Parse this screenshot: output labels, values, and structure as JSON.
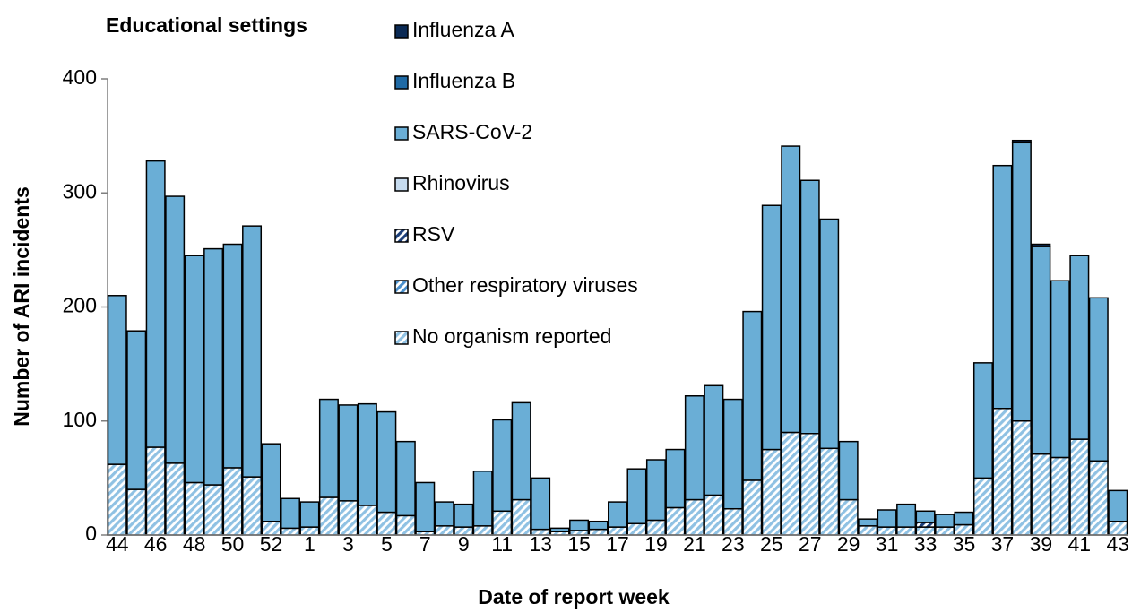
{
  "chart_data": {
    "type": "stacked_bar",
    "title": "Educational settings",
    "x_label": "Date of report week",
    "y_label": "Number of ARI incidents",
    "categories": [
      "44",
      null,
      "46",
      null,
      "48",
      null,
      "50",
      null,
      "52",
      null,
      "1",
      null,
      "3",
      null,
      "5",
      null,
      "7",
      null,
      "9",
      null,
      "11",
      null,
      "13",
      null,
      "15",
      null,
      "17",
      null,
      "19",
      null,
      "21",
      null,
      "23",
      null,
      "25",
      null,
      "27",
      null,
      "29",
      null,
      "31",
      null,
      "33",
      null,
      "35",
      null,
      "37",
      null,
      "39",
      null,
      "41",
      null,
      "43"
    ],
    "ylim": [
      0,
      400
    ],
    "yticks": [
      0,
      100,
      200,
      300,
      400
    ],
    "series": [
      {
        "name": "Influenza A",
        "color": "#0b2a55",
        "hatch": false,
        "values": [
          0,
          0,
          0,
          0,
          0,
          0,
          0,
          0,
          0,
          0,
          0,
          0,
          0,
          0,
          0,
          0,
          0,
          0,
          0,
          0,
          0,
          0,
          0,
          0,
          0,
          0,
          0,
          0,
          0,
          0,
          0,
          0,
          0,
          0,
          0,
          0,
          0,
          0,
          0,
          0,
          0,
          0,
          0,
          0,
          0,
          0,
          0,
          2,
          2,
          0,
          0,
          0,
          0
        ]
      },
      {
        "name": "Influenza B",
        "color": "#1f6aa5",
        "hatch": false,
        "values": [
          0,
          0,
          0,
          0,
          0,
          0,
          0,
          0,
          0,
          0,
          0,
          0,
          0,
          0,
          0,
          0,
          0,
          0,
          0,
          0,
          0,
          0,
          0,
          0,
          0,
          0,
          0,
          0,
          0,
          0,
          0,
          0,
          0,
          0,
          0,
          0,
          0,
          0,
          0,
          0,
          0,
          0,
          0,
          0,
          0,
          0,
          0,
          0,
          0,
          0,
          0,
          0,
          0
        ]
      },
      {
        "name": "SARS-CoV-2",
        "color": "#6aaed6",
        "hatch": false,
        "values": [
          148,
          139,
          251,
          234,
          199,
          207,
          196,
          220,
          68,
          26,
          22,
          86,
          84,
          89,
          88,
          65,
          43,
          21,
          20,
          48,
          80,
          85,
          45,
          3,
          9,
          7,
          22,
          48,
          53,
          51,
          91,
          96,
          96,
          148,
          214,
          251,
          222,
          201,
          51,
          6,
          15,
          20,
          10,
          11,
          11,
          101,
          213,
          244,
          182,
          155,
          161,
          143,
          27
        ]
      },
      {
        "name": "Rhinovirus",
        "color": "#c6dbef",
        "hatch": false,
        "values": [
          0,
          0,
          0,
          0,
          0,
          0,
          0,
          0,
          0,
          0,
          0,
          0,
          0,
          0,
          0,
          0,
          0,
          0,
          0,
          0,
          0,
          0,
          0,
          0,
          0,
          0,
          0,
          0,
          0,
          0,
          0,
          0,
          0,
          0,
          0,
          0,
          0,
          0,
          0,
          0,
          0,
          0,
          0,
          0,
          0,
          0,
          0,
          0,
          0,
          0,
          0,
          0,
          0
        ]
      },
      {
        "name": "RSV",
        "color": "#1c3f7a",
        "hatch": true,
        "values": [
          0,
          0,
          0,
          0,
          0,
          0,
          0,
          0,
          0,
          0,
          0,
          0,
          0,
          0,
          0,
          0,
          0,
          0,
          0,
          0,
          0,
          0,
          0,
          0,
          0,
          0,
          0,
          0,
          0,
          0,
          0,
          0,
          0,
          0,
          0,
          0,
          0,
          0,
          0,
          0,
          0,
          0,
          4,
          0,
          0,
          0,
          0,
          0,
          0,
          0,
          0,
          0,
          0
        ]
      },
      {
        "name": "Other respiratory viruses",
        "color": "#4a8fcc",
        "hatch": true,
        "values": [
          0,
          0,
          0,
          0,
          0,
          0,
          0,
          0,
          0,
          0,
          0,
          0,
          0,
          0,
          0,
          0,
          0,
          0,
          0,
          0,
          0,
          0,
          0,
          0,
          0,
          0,
          0,
          0,
          0,
          0,
          0,
          0,
          0,
          0,
          0,
          0,
          0,
          0,
          0,
          0,
          0,
          0,
          0,
          0,
          0,
          0,
          0,
          0,
          0,
          0,
          0,
          0,
          0
        ]
      },
      {
        "name": "No organism reported",
        "color": "#8fc1e3",
        "hatch": true,
        "values": [
          62,
          40,
          77,
          63,
          46,
          44,
          59,
          51,
          12,
          6,
          7,
          33,
          30,
          26,
          20,
          17,
          3,
          8,
          7,
          8,
          21,
          31,
          5,
          3,
          4,
          5,
          7,
          10,
          13,
          24,
          31,
          35,
          23,
          48,
          75,
          90,
          89,
          76,
          31,
          8,
          7,
          7,
          7,
          7,
          9,
          50,
          111,
          100,
          71,
          68,
          84,
          65,
          12
        ]
      }
    ]
  }
}
